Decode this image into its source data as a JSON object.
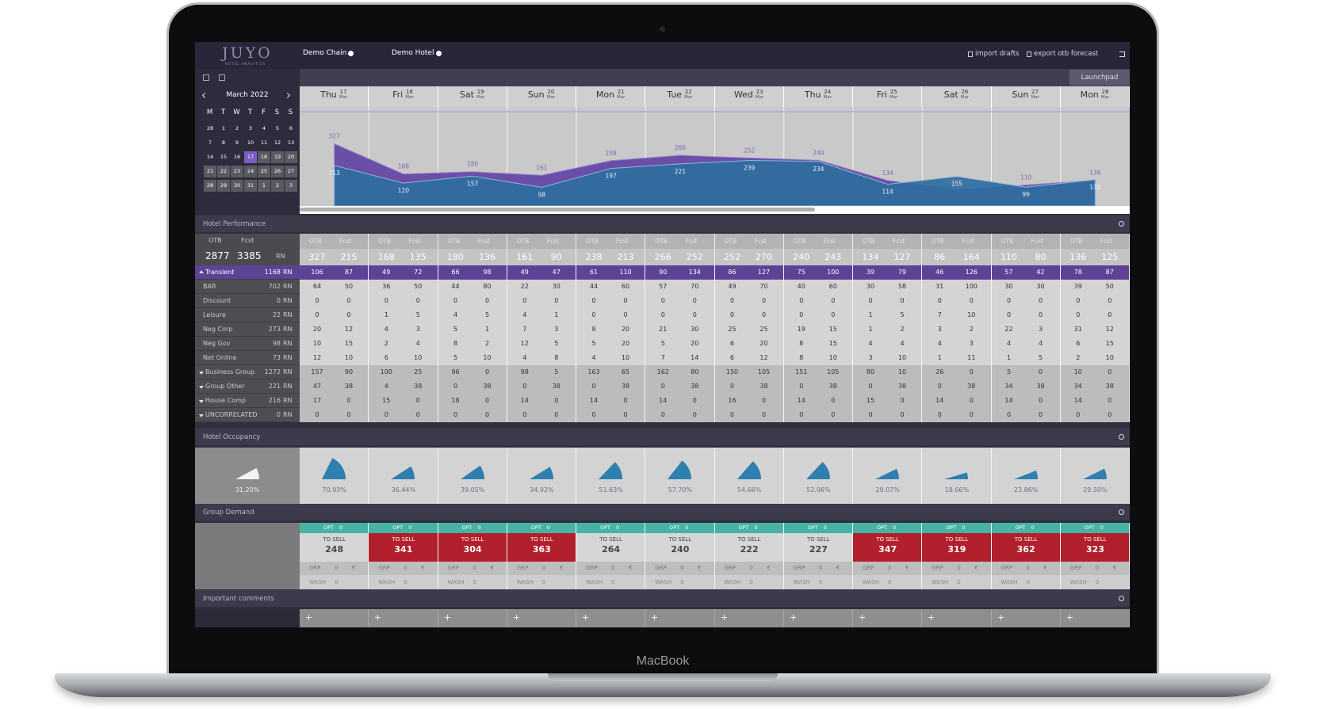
{
  "header": {
    "logo": "JUYO",
    "logo_sub": "HOTEL ANALYTICS",
    "chain": "Demo Chain",
    "hotel": "Demo Hotel",
    "import": "import drafts",
    "export": "export otb forecast",
    "launchpad": "Launchpad"
  },
  "calendar": {
    "month": "March 2022",
    "weekdays": [
      "M",
      "T",
      "W",
      "T",
      "F",
      "S",
      "S"
    ],
    "weeks": [
      [
        28,
        1,
        2,
        3,
        4,
        5,
        6
      ],
      [
        7,
        8,
        9,
        10,
        11,
        12,
        13
      ],
      [
        14,
        15,
        16,
        17,
        18,
        19,
        20
      ],
      [
        21,
        22,
        23,
        24,
        25,
        26,
        27
      ],
      [
        28,
        29,
        30,
        31,
        1,
        2,
        3
      ]
    ]
  },
  "days": [
    {
      "weekday": "Thu",
      "day": 17,
      "month": "Mar"
    },
    {
      "weekday": "Fri",
      "day": 18,
      "month": "Mar"
    },
    {
      "weekday": "Sat",
      "day": 19,
      "month": "Mar"
    },
    {
      "weekday": "Sun",
      "day": 20,
      "month": "Mar"
    },
    {
      "weekday": "Mon",
      "day": 21,
      "month": "Mar"
    },
    {
      "weekday": "Tue",
      "day": 22,
      "month": "Mar"
    },
    {
      "weekday": "Wed",
      "day": 23,
      "month": "Mar"
    },
    {
      "weekday": "Thu",
      "day": 24,
      "month": "Mar"
    },
    {
      "weekday": "Fri",
      "day": 25,
      "month": "Mar"
    },
    {
      "weekday": "Sat",
      "day": 26,
      "month": "Mar"
    },
    {
      "weekday": "Sun",
      "day": 27,
      "month": "Mar"
    },
    {
      "weekday": "Mon",
      "day": 28,
      "month": "Mar"
    }
  ],
  "chart_data": {
    "type": "area",
    "ylim": [
      0,
      520
    ],
    "series": [
      {
        "color": "#6a4ea8",
        "values": [
          327,
          168,
          180,
          161,
          238,
          266,
          252,
          240,
          134,
          86,
          110,
          136
        ]
      },
      {
        "color": "#2f6e9f",
        "values": [
          213,
          120,
          157,
          98,
          197,
          221,
          239,
          234,
          114,
          155,
          99,
          138
        ]
      }
    ]
  },
  "performance": {
    "title": "Hotel Performance",
    "otb_label": "OTB",
    "fcst_label": "Fcst",
    "unit": "RN",
    "total_otb": 2877,
    "total_fcst": 3385,
    "day_totals": [
      [
        327,
        215
      ],
      [
        168,
        135
      ],
      [
        180,
        136
      ],
      [
        161,
        90
      ],
      [
        238,
        213
      ],
      [
        266,
        252
      ],
      [
        252,
        270
      ],
      [
        240,
        243
      ],
      [
        134,
        127
      ],
      [
        86,
        164
      ],
      [
        110,
        80
      ],
      [
        136,
        125
      ]
    ],
    "rows": [
      {
        "label": "Transient",
        "total": 1168,
        "level": 0,
        "values": [
          [
            106,
            87
          ],
          [
            49,
            72
          ],
          [
            66,
            98
          ],
          [
            49,
            47
          ],
          [
            61,
            110
          ],
          [
            90,
            134
          ],
          [
            86,
            127
          ],
          [
            75,
            100
          ],
          [
            39,
            79
          ],
          [
            46,
            126
          ],
          [
            57,
            42
          ],
          [
            78,
            87
          ]
        ]
      },
      {
        "label": "BAR",
        "total": 702,
        "level": 1,
        "values": [
          [
            64,
            50
          ],
          [
            36,
            50
          ],
          [
            44,
            80
          ],
          [
            22,
            30
          ],
          [
            44,
            60
          ],
          [
            57,
            70
          ],
          [
            49,
            70
          ],
          [
            40,
            60
          ],
          [
            30,
            58
          ],
          [
            31,
            100
          ],
          [
            30,
            30
          ],
          [
            39,
            50
          ]
        ]
      },
      {
        "label": "Discount",
        "total": 0,
        "level": 1,
        "values": [
          [
            0,
            0
          ],
          [
            0,
            0
          ],
          [
            0,
            0
          ],
          [
            0,
            0
          ],
          [
            0,
            0
          ],
          [
            0,
            0
          ],
          [
            0,
            0
          ],
          [
            0,
            0
          ],
          [
            0,
            0
          ],
          [
            0,
            0
          ],
          [
            0,
            0
          ],
          [
            0,
            0
          ]
        ]
      },
      {
        "label": "Leisure",
        "total": 22,
        "level": 1,
        "values": [
          [
            0,
            0
          ],
          [
            1,
            5
          ],
          [
            4,
            5
          ],
          [
            4,
            1
          ],
          [
            0,
            0
          ],
          [
            0,
            0
          ],
          [
            0,
            0
          ],
          [
            0,
            0
          ],
          [
            1,
            5
          ],
          [
            7,
            10
          ],
          [
            0,
            0
          ],
          [
            0,
            0
          ]
        ]
      },
      {
        "label": "Neg Corp",
        "total": 273,
        "level": 1,
        "values": [
          [
            20,
            12
          ],
          [
            4,
            3
          ],
          [
            5,
            1
          ],
          [
            7,
            3
          ],
          [
            8,
            20
          ],
          [
            21,
            30
          ],
          [
            25,
            25
          ],
          [
            19,
            15
          ],
          [
            1,
            2
          ],
          [
            3,
            2
          ],
          [
            22,
            3
          ],
          [
            31,
            12
          ]
        ]
      },
      {
        "label": "Neg Gov",
        "total": 98,
        "level": 1,
        "values": [
          [
            10,
            15
          ],
          [
            2,
            4
          ],
          [
            8,
            2
          ],
          [
            12,
            5
          ],
          [
            5,
            20
          ],
          [
            5,
            20
          ],
          [
            6,
            20
          ],
          [
            8,
            15
          ],
          [
            4,
            4
          ],
          [
            4,
            3
          ],
          [
            4,
            4
          ],
          [
            6,
            15
          ]
        ]
      },
      {
        "label": "Net Online",
        "total": 73,
        "level": 1,
        "values": [
          [
            12,
            10
          ],
          [
            6,
            10
          ],
          [
            5,
            10
          ],
          [
            4,
            8
          ],
          [
            4,
            10
          ],
          [
            7,
            14
          ],
          [
            6,
            12
          ],
          [
            8,
            10
          ],
          [
            3,
            10
          ],
          [
            1,
            11
          ],
          [
            1,
            5
          ],
          [
            2,
            10
          ]
        ]
      },
      {
        "label": "Business Group",
        "total": 1272,
        "level": 0,
        "values": [
          [
            157,
            90
          ],
          [
            100,
            25
          ],
          [
            96,
            0
          ],
          [
            98,
            5
          ],
          [
            163,
            65
          ],
          [
            162,
            80
          ],
          [
            150,
            105
          ],
          [
            151,
            105
          ],
          [
            80,
            10
          ],
          [
            26,
            0
          ],
          [
            5,
            0
          ],
          [
            10,
            0
          ]
        ]
      },
      {
        "label": "Group Other",
        "total": 221,
        "level": 0,
        "values": [
          [
            47,
            38
          ],
          [
            4,
            38
          ],
          [
            0,
            38
          ],
          [
            0,
            38
          ],
          [
            0,
            38
          ],
          [
            0,
            38
          ],
          [
            0,
            38
          ],
          [
            0,
            38
          ],
          [
            0,
            38
          ],
          [
            0,
            38
          ],
          [
            34,
            38
          ],
          [
            34,
            38
          ]
        ]
      },
      {
        "label": "House Comp",
        "total": 216,
        "level": 0,
        "values": [
          [
            17,
            0
          ],
          [
            15,
            0
          ],
          [
            18,
            0
          ],
          [
            14,
            0
          ],
          [
            14,
            0
          ],
          [
            14,
            0
          ],
          [
            16,
            0
          ],
          [
            14,
            0
          ],
          [
            15,
            0
          ],
          [
            14,
            0
          ],
          [
            14,
            0
          ],
          [
            14,
            0
          ]
        ]
      },
      {
        "label": "UNCORRELATED",
        "total": 0,
        "level": 0,
        "values": [
          [
            0,
            0
          ],
          [
            0,
            0
          ],
          [
            0,
            0
          ],
          [
            0,
            0
          ],
          [
            0,
            0
          ],
          [
            0,
            0
          ],
          [
            0,
            0
          ],
          [
            0,
            0
          ],
          [
            0,
            0
          ],
          [
            0,
            0
          ],
          [
            0,
            0
          ],
          [
            0,
            0
          ]
        ]
      }
    ]
  },
  "occupancy": {
    "title": "Hotel Occupancy",
    "total": {
      "value": 31.2,
      "label": "31.20%"
    },
    "days": [
      {
        "value": 70.93,
        "label": "70.93%"
      },
      {
        "value": 36.44,
        "label": "36.44%"
      },
      {
        "value": 39.05,
        "label": "39.05%"
      },
      {
        "value": 34.92,
        "label": "34.92%"
      },
      {
        "value": 51.63,
        "label": "51.63%"
      },
      {
        "value": 57.7,
        "label": "57.70%"
      },
      {
        "value": 54.66,
        "label": "54.66%"
      },
      {
        "value": 52.06,
        "label": "52.06%"
      },
      {
        "value": 29.07,
        "label": "29.07%"
      },
      {
        "value": 18.66,
        "label": "18.66%"
      },
      {
        "value": 23.86,
        "label": "23.86%"
      },
      {
        "value": 29.5,
        "label": "29.50%"
      }
    ]
  },
  "group_demand": {
    "title": "Group Demand",
    "opt_label": "OPT",
    "to_sell_label": "TO SELL",
    "grp_label": "GRP",
    "currency": "€",
    "wash_label": "WASH",
    "days": [
      {
        "opt": 0,
        "to_sell": 248,
        "alert": false,
        "grp": 0,
        "wash": 0
      },
      {
        "opt": 0,
        "to_sell": 341,
        "alert": true,
        "grp": 0,
        "wash": 0
      },
      {
        "opt": 0,
        "to_sell": 304,
        "alert": true,
        "grp": 0,
        "wash": 0
      },
      {
        "opt": 0,
        "to_sell": 363,
        "alert": true,
        "grp": 0,
        "wash": 0
      },
      {
        "opt": 0,
        "to_sell": 264,
        "alert": false,
        "grp": 0,
        "wash": 0
      },
      {
        "opt": 0,
        "to_sell": 240,
        "alert": false,
        "grp": 0,
        "wash": 0
      },
      {
        "opt": 0,
        "to_sell": 222,
        "alert": false,
        "grp": 0,
        "wash": 0
      },
      {
        "opt": 0,
        "to_sell": 227,
        "alert": false,
        "grp": 0,
        "wash": 0
      },
      {
        "opt": 0,
        "to_sell": 347,
        "alert": true,
        "grp": 0,
        "wash": 0
      },
      {
        "opt": 0,
        "to_sell": 319,
        "alert": true,
        "grp": 0,
        "wash": 0
      },
      {
        "opt": 0,
        "to_sell": 362,
        "alert": true,
        "grp": 0,
        "wash": 0
      },
      {
        "opt": 0,
        "to_sell": 323,
        "alert": true,
        "grp": 0,
        "wash": 0
      }
    ]
  },
  "comments": {
    "title": "Important comments"
  },
  "device": {
    "label": "MacBook"
  }
}
